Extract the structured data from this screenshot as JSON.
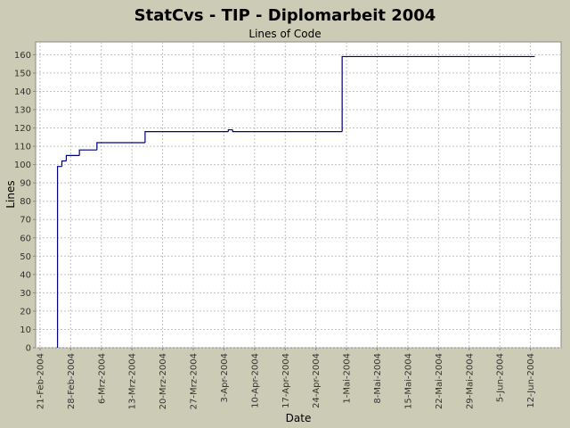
{
  "chart_data": {
    "type": "step",
    "title": "StatCvs - TIP - Diplomarbeit 2004",
    "subtitle": "Lines of Code",
    "x_label": "Date",
    "y_label": "Lines",
    "x": [
      "2004-02-25",
      "2004-02-25",
      "2004-02-26",
      "2004-02-27",
      "2004-03-01",
      "2004-03-05",
      "2004-03-16",
      "2004-04-04",
      "2004-04-05",
      "2004-04-30",
      "2004-06-13"
    ],
    "values": [
      0,
      99,
      102,
      105,
      108,
      112,
      118,
      119,
      118,
      159,
      159
    ],
    "color": "#000080",
    "xlim": [
      "2004-02-20",
      "2004-06-19"
    ],
    "xticks": [
      {
        "value": "2004-02-21",
        "label": "21-Feb-2004"
      },
      {
        "value": "2004-02-28",
        "label": "28-Feb-2004"
      },
      {
        "value": "2004-03-06",
        "label": "6-Mrz-2004"
      },
      {
        "value": "2004-03-13",
        "label": "13-Mrz-2004"
      },
      {
        "value": "2004-03-20",
        "label": "20-Mrz-2004"
      },
      {
        "value": "2004-03-27",
        "label": "27-Mrz-2004"
      },
      {
        "value": "2004-04-03",
        "label": "3-Apr-2004"
      },
      {
        "value": "2004-04-10",
        "label": "10-Apr-2004"
      },
      {
        "value": "2004-04-17",
        "label": "17-Apr-2004"
      },
      {
        "value": "2004-04-24",
        "label": "24-Apr-2004"
      },
      {
        "value": "2004-05-01",
        "label": "1-Mai-2004"
      },
      {
        "value": "2004-05-08",
        "label": "8-Mai-2004"
      },
      {
        "value": "2004-05-15",
        "label": "15-Mai-2004"
      },
      {
        "value": "2004-05-22",
        "label": "22-Mai-2004"
      },
      {
        "value": "2004-05-29",
        "label": "29-Mai-2004"
      },
      {
        "value": "2004-06-05",
        "label": "5-Jun-2004"
      },
      {
        "value": "2004-06-12",
        "label": "12-Jun-2004"
      }
    ],
    "ylim": [
      0,
      167
    ],
    "yticks": [
      0,
      10,
      20,
      30,
      40,
      50,
      60,
      70,
      80,
      90,
      100,
      110,
      120,
      130,
      140,
      150,
      160
    ],
    "grid": true
  }
}
